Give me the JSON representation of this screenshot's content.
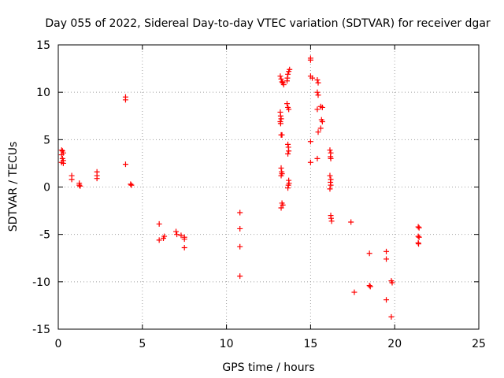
{
  "chart_data": {
    "type": "scatter",
    "title": "Day 055 of 2022, Sidereal Day-to-day VTEC variation (SDTVAR) for receiver dgar",
    "xlabel": "GPS time / hours",
    "ylabel": "SDTVAR / TECUs",
    "xlim": [
      0,
      25
    ],
    "ylim": [
      -15,
      15
    ],
    "xticks": [
      0,
      5,
      10,
      15,
      20,
      25
    ],
    "yticks": [
      -15,
      -10,
      -5,
      0,
      5,
      10,
      15
    ],
    "grid": true,
    "marker": "+",
    "color": "#ff0000",
    "series": [
      {
        "name": "SDTVAR",
        "points": [
          [
            0.2,
            3.9
          ],
          [
            0.25,
            3.8
          ],
          [
            0.3,
            3.6
          ],
          [
            0.2,
            3.4
          ],
          [
            0.25,
            3.0
          ],
          [
            0.3,
            2.8
          ],
          [
            0.2,
            2.6
          ],
          [
            0.3,
            2.5
          ],
          [
            0.8,
            1.2
          ],
          [
            0.8,
            0.8
          ],
          [
            1.25,
            0.4
          ],
          [
            1.25,
            0.2
          ],
          [
            1.3,
            0.1
          ],
          [
            2.3,
            1.6
          ],
          [
            2.3,
            1.2
          ],
          [
            2.3,
            0.9
          ],
          [
            4.0,
            9.5
          ],
          [
            4.0,
            9.2
          ],
          [
            4.0,
            2.4
          ],
          [
            4.3,
            0.3
          ],
          [
            4.35,
            0.2
          ],
          [
            6.0,
            -3.9
          ],
          [
            6.0,
            -5.6
          ],
          [
            6.3,
            -5.2
          ],
          [
            6.25,
            -5.4
          ],
          [
            7.0,
            -4.7
          ],
          [
            7.05,
            -5.0
          ],
          [
            7.3,
            -5.1
          ],
          [
            7.5,
            -5.3
          ],
          [
            7.5,
            -5.5
          ],
          [
            7.5,
            -6.4
          ],
          [
            10.8,
            -2.7
          ],
          [
            10.8,
            -4.4
          ],
          [
            10.8,
            -6.3
          ],
          [
            10.8,
            -9.4
          ],
          [
            13.2,
            11.7
          ],
          [
            13.25,
            11.4
          ],
          [
            13.3,
            11.1
          ],
          [
            13.35,
            11.0
          ],
          [
            13.4,
            10.8
          ],
          [
            13.2,
            7.9
          ],
          [
            13.22,
            7.5
          ],
          [
            13.25,
            7.2
          ],
          [
            13.2,
            6.9
          ],
          [
            13.22,
            6.7
          ],
          [
            13.25,
            5.5
          ],
          [
            13.3,
            5.5
          ],
          [
            13.25,
            2.0
          ],
          [
            13.28,
            1.6
          ],
          [
            13.3,
            1.4
          ],
          [
            13.25,
            1.2
          ],
          [
            13.3,
            -1.7
          ],
          [
            13.35,
            -1.9
          ],
          [
            13.25,
            -2.2
          ],
          [
            13.6,
            11.2
          ],
          [
            13.62,
            11.5
          ],
          [
            13.65,
            11.9
          ],
          [
            13.7,
            12.2
          ],
          [
            13.75,
            12.4
          ],
          [
            13.6,
            8.8
          ],
          [
            13.65,
            8.4
          ],
          [
            13.7,
            8.2
          ],
          [
            13.65,
            4.5
          ],
          [
            13.68,
            4.2
          ],
          [
            13.7,
            3.8
          ],
          [
            13.65,
            3.5
          ],
          [
            13.7,
            0.7
          ],
          [
            13.72,
            0.4
          ],
          [
            13.68,
            0.2
          ],
          [
            13.65,
            -0.1
          ],
          [
            15.0,
            13.6
          ],
          [
            15.0,
            13.4
          ],
          [
            15.0,
            11.7
          ],
          [
            15.1,
            11.5
          ],
          [
            15.0,
            4.8
          ],
          [
            15.0,
            2.6
          ],
          [
            15.4,
            11.3
          ],
          [
            15.45,
            11.0
          ],
          [
            15.4,
            10.0
          ],
          [
            15.45,
            9.7
          ],
          [
            15.4,
            8.2
          ],
          [
            15.45,
            5.8
          ],
          [
            15.4,
            3.0
          ],
          [
            15.6,
            8.5
          ],
          [
            15.7,
            8.4
          ],
          [
            15.65,
            7.1
          ],
          [
            15.7,
            6.9
          ],
          [
            15.6,
            6.2
          ],
          [
            16.15,
            3.9
          ],
          [
            16.2,
            3.6
          ],
          [
            16.18,
            3.2
          ],
          [
            16.2,
            3.0
          ],
          [
            16.15,
            1.2
          ],
          [
            16.2,
            0.8
          ],
          [
            16.18,
            0.5
          ],
          [
            16.2,
            0.2
          ],
          [
            16.15,
            -0.2
          ],
          [
            16.2,
            -3.0
          ],
          [
            16.22,
            -3.3
          ],
          [
            16.25,
            -3.6
          ],
          [
            17.4,
            -3.7
          ],
          [
            17.6,
            -11.1
          ],
          [
            18.5,
            -7.0
          ],
          [
            18.5,
            -10.4
          ],
          [
            18.55,
            -10.5
          ],
          [
            19.5,
            -6.8
          ],
          [
            19.5,
            -7.6
          ],
          [
            19.5,
            -11.9
          ],
          [
            19.8,
            -9.9
          ],
          [
            19.85,
            -10.1
          ],
          [
            19.8,
            -13.7
          ],
          [
            21.4,
            -4.2
          ],
          [
            21.45,
            -4.3
          ],
          [
            21.4,
            -5.2
          ],
          [
            21.45,
            -5.3
          ],
          [
            21.4,
            -5.9
          ],
          [
            21.42,
            -6.0
          ]
        ]
      }
    ]
  }
}
